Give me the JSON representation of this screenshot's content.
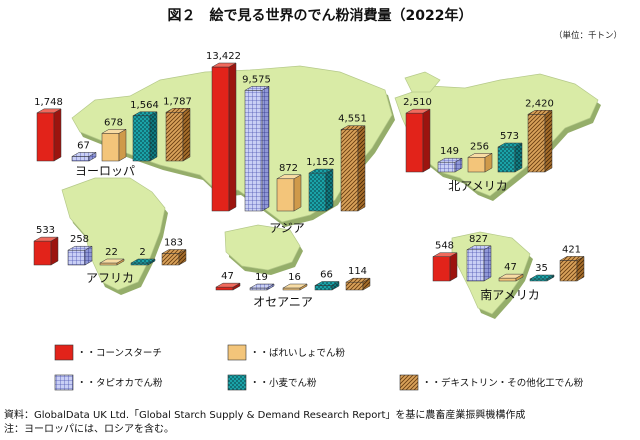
{
  "title": "図２　絵で見る世界のでん粉消費量（2022年）",
  "unit": "（単位：千トン）",
  "chart_data": {
    "type": "bar",
    "style": "3d-bars-over-world-map",
    "categories": [
      "コーンスターチ",
      "タピオカでん粉",
      "ばれいしょでん粉",
      "小麦でん粉",
      "デキストリン・その他化工でん粉"
    ],
    "series": [
      {
        "name": "ヨーロッパ",
        "values": [
          1748,
          67,
          678,
          1564,
          1787
        ]
      },
      {
        "name": "アジア",
        "values": [
          13422,
          9575,
          872,
          1152,
          4551
        ]
      },
      {
        "name": "北アメリカ",
        "values": [
          2510,
          149,
          256,
          573,
          2420
        ]
      },
      {
        "name": "アフリカ",
        "values": [
          533,
          258,
          22,
          2,
          183
        ]
      },
      {
        "name": "オセアニア",
        "values": [
          47,
          19,
          16,
          66,
          114
        ]
      },
      {
        "name": "南アメリカ",
        "values": [
          548,
          827,
          47,
          35,
          421
        ]
      }
    ],
    "value_labels": {
      "ヨーロッパ": [
        "1,748",
        "67",
        "678",
        "1,564",
        "1,787"
      ],
      "アジア": [
        "13,422",
        "9,575",
        "872",
        "1,152",
        "4,551"
      ],
      "北アメリカ": [
        "2,510",
        "149",
        "256",
        "573",
        "2,420"
      ],
      "アフリカ": [
        "533",
        "258",
        "22",
        "2",
        "183"
      ],
      "オセアニア": [
        "47",
        "19",
        "16",
        "66",
        "114"
      ],
      "南アメリカ": [
        "548",
        "827",
        "47",
        "35",
        "421"
      ]
    },
    "colors": {
      "コーンスターチ": "#e2231a",
      "タピオカでん粉": "#9fa8e6",
      "ばれいしょでん粉": "#f3c57a",
      "小麦でん粉": "#1aa3a8",
      "デキストリン・その他化工でん粉": "#c98a3e"
    },
    "legend": {
      "position": "bottom",
      "items": [
        "・・コーンスターチ",
        "・・ばれいしょでん粉",
        "・・タピオカでん粉",
        "・・小麦でん粉",
        "・・デキストリン・その他化工でん粉"
      ]
    },
    "map_color": "#d9eba6"
  },
  "notes": [
    "資料：GlobalData UK Ltd.「Global Starch Supply & Demand Research Report」を基に農畜産業振興機構作成",
    "注：ヨーロッパには、ロシアを含む。"
  ]
}
